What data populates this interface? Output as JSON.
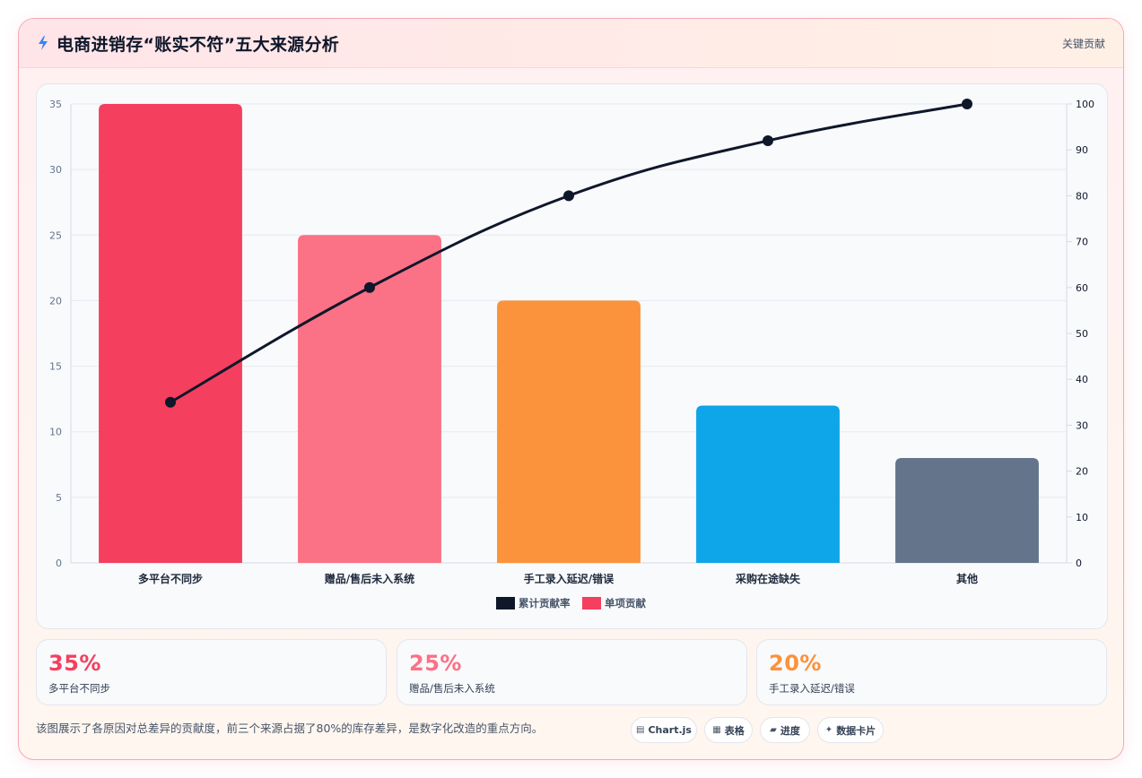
{
  "header": {
    "title": "电商进销存“账实不符”五大来源分析",
    "link_label": "关键贡献"
  },
  "chart_data": {
    "type": "bar",
    "categories": [
      "多平台不同步",
      "赠品/售后未入系统",
      "手工录入延迟/错误",
      "采购在途缺失",
      "其他"
    ],
    "series": [
      {
        "name": "单项贡献",
        "type": "bar",
        "axis": "left",
        "values": [
          35,
          25,
          20,
          12,
          8
        ]
      },
      {
        "name": "累计贡献率",
        "type": "line",
        "axis": "right",
        "values": [
          35,
          60,
          80,
          92,
          100
        ]
      }
    ],
    "bar_colors": [
      "#f43f5e",
      "#fb7185",
      "#fb923c",
      "#0ea5e9",
      "#64748b"
    ],
    "line_color": "#0f172a",
    "left_axis": {
      "min": 0,
      "max": 35,
      "ticks": [
        0,
        5,
        10,
        15,
        20,
        25,
        30,
        35
      ]
    },
    "right_axis": {
      "min": 0,
      "max": 100,
      "ticks": [
        0,
        10,
        20,
        30,
        40,
        50,
        60,
        70,
        80,
        90,
        100
      ]
    },
    "grid": true,
    "legend_position": "bottom",
    "legend": [
      {
        "label": "累计贡献率",
        "color": "#0f172a"
      },
      {
        "label": "单项贡献",
        "color": "#f43f5e"
      }
    ]
  },
  "stats": [
    {
      "value": "35%",
      "label": "多平台不同步",
      "color": "#f43f5e"
    },
    {
      "value": "25%",
      "label": "赠品/售后未入系统",
      "color": "#fb7185"
    },
    {
      "value": "20%",
      "label": "手工录入延迟/错误",
      "color": "#fb923c"
    }
  ],
  "footer": {
    "note": "该图展示了各原因对总差异的贡献度，前三个来源占据了80%的库存差异，是数字化改造的重点方向。",
    "chips": [
      {
        "icon": "chart-icon",
        "label": "Chart.js"
      },
      {
        "icon": "table-icon",
        "label": "表格"
      },
      {
        "icon": "progress-icon",
        "label": "进度"
      },
      {
        "icon": "sparkle-icon",
        "label": "数据卡片"
      }
    ]
  }
}
